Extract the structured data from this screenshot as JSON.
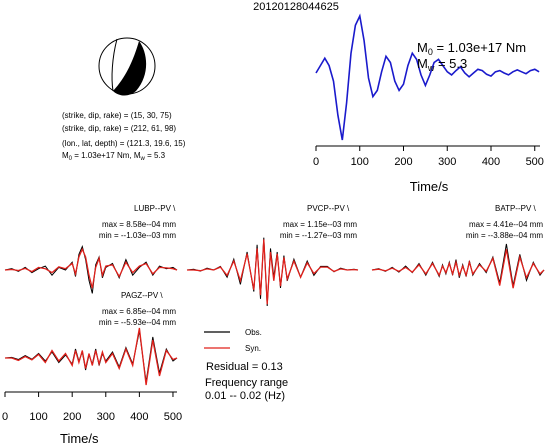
{
  "title": "20120128044625",
  "colors": {
    "obs": "#000000",
    "syn": "#e0201b",
    "stf": "#1a1acc",
    "beach_fill": "#000000"
  },
  "source": {
    "line1": "(strike, dip, rake) = (15, 30, 75)",
    "line2": "(strike, dip, rake) = (212, 61, 98)",
    "line3": "(lon., lat, depth) = (121.3, 19.6, 15)",
    "line4a": "M",
    "line4a_sub": "0",
    "line4b": " = 1.03e+17 Nm, M",
    "line4b_sub": "w",
    "line4c": " = 5.3"
  },
  "stf_labels": {
    "m0_prefix": "M",
    "m0_sub": "0",
    "m0_value": " = 1.03e+17 Nm",
    "mw_prefix": "M",
    "mw_sub": "w",
    "mw_value": " = 5.3"
  },
  "stations": [
    {
      "name": "LUBP--PV \\",
      "max": "max = 8.58e--04 mm",
      "min": "min = --1.03e--03 mm"
    },
    {
      "name": "PVCP--PV \\",
      "max": "max = 1.15e--03 mm",
      "min": "min = --1.27e--03 mm"
    },
    {
      "name": "BATP--PV \\",
      "max": "max = 4.41e--04 mm",
      "min": "min = --3.88e--04 mm"
    },
    {
      "name": "PAGZ--PV \\",
      "max": "max = 6.85e--04 mm",
      "min": "min = --5.93e--04 mm"
    }
  ],
  "legend": {
    "obs": "Obs.",
    "syn": "Syn."
  },
  "residual": "Residual = 0.13",
  "freq_label": "Frequency range",
  "freq_value": "0.01 -- 0.02 (Hz)",
  "chart_data": [
    {
      "type": "line",
      "title": "",
      "xlabel": "Time/s",
      "ylabel": "",
      "xlim": [
        0,
        512
      ],
      "xticks": [
        0,
        100,
        200,
        300,
        400,
        500
      ],
      "series": [
        {
          "x": [
            0,
            10,
            20,
            30,
            40,
            50,
            60,
            70,
            80,
            90,
            100,
            110,
            120,
            130,
            140,
            150,
            160,
            170,
            180,
            190,
            200,
            210,
            220,
            230,
            240,
            250,
            260,
            270,
            280,
            290,
            300,
            310,
            320,
            330,
            340,
            350,
            360,
            370,
            380,
            390,
            400,
            410,
            420,
            430,
            440,
            450,
            460,
            470,
            480,
            490,
            500,
            510
          ],
          "y": [
            0.08,
            0.2,
            0.32,
            0.2,
            -0.05,
            -0.6,
            -1.0,
            -0.4,
            0.4,
            0.85,
            1.0,
            0.6,
            0.0,
            -0.3,
            -0.2,
            0.1,
            0.35,
            0.25,
            -0.05,
            -0.2,
            -0.1,
            0.2,
            0.4,
            0.3,
            0.05,
            -0.12,
            0.05,
            0.25,
            0.3,
            0.2,
            0.1,
            0.05,
            0.12,
            0.18,
            0.08,
            0.02,
            0.08,
            0.14,
            0.12,
            0.06,
            0.03,
            0.1,
            0.12,
            0.08,
            0.05,
            0.1,
            0.13,
            0.1,
            0.07,
            0.12,
            0.14,
            0.1
          ]
        }
      ]
    },
    {
      "type": "line",
      "title": "",
      "xlabel": "Time/s",
      "ylabel": "",
      "xlim": [
        0,
        512
      ],
      "xticks": [
        0,
        100,
        200,
        300,
        400,
        500
      ],
      "series": [
        {
          "name": "Obs.",
          "station": 0,
          "x": [
            0,
            20,
            40,
            60,
            80,
            100,
            120,
            140,
            160,
            180,
            200,
            210,
            220,
            230,
            240,
            250,
            260,
            270,
            280,
            290,
            300,
            320,
            340,
            360,
            380,
            400,
            420,
            440,
            460,
            480,
            500,
            512
          ],
          "y": [
            0,
            0.05,
            -0.05,
            0.1,
            -0.1,
            0.05,
            0.15,
            -0.2,
            0.1,
            0.0,
            0.3,
            -0.25,
            0.6,
            0.9,
            0.4,
            -0.4,
            -0.9,
            0.2,
            0.5,
            -0.3,
            0.1,
            0.25,
            -0.3,
            0.4,
            -0.2,
            0.1,
            0.3,
            -0.2,
            0.15,
            0.05,
            0.1,
            0.0
          ]
        },
        {
          "name": "Syn.",
          "station": 0,
          "x": [
            0,
            20,
            40,
            60,
            80,
            100,
            120,
            140,
            160,
            180,
            200,
            210,
            220,
            230,
            240,
            250,
            260,
            270,
            280,
            290,
            300,
            320,
            340,
            360,
            380,
            400,
            420,
            440,
            460,
            480,
            500,
            512
          ],
          "y": [
            0,
            0.02,
            -0.02,
            0.06,
            -0.06,
            0.1,
            0.05,
            -0.1,
            0.12,
            0.05,
            0.25,
            -0.15,
            0.5,
            0.8,
            0.5,
            -0.2,
            -0.7,
            0.1,
            0.45,
            -0.2,
            0.15,
            0.2,
            -0.25,
            0.3,
            -0.1,
            0.15,
            0.25,
            -0.15,
            0.1,
            0.08,
            0.05,
            0.0
          ]
        },
        {
          "name": "Obs.",
          "station": 1,
          "x": [
            0,
            20,
            40,
            60,
            80,
            100,
            120,
            140,
            160,
            180,
            200,
            210,
            220,
            230,
            240,
            250,
            260,
            270,
            280,
            290,
            300,
            320,
            340,
            360,
            380,
            400,
            420,
            440,
            460,
            480,
            500,
            512
          ],
          "y": [
            0,
            0.02,
            -0.03,
            0.05,
            0.0,
            0.1,
            -0.2,
            0.3,
            -0.4,
            0.5,
            -0.6,
            0.7,
            -0.8,
            0.9,
            -1.0,
            0.6,
            -0.2,
            0.5,
            -0.5,
            0.4,
            -0.3,
            0.3,
            -0.2,
            0.25,
            -0.15,
            0.1,
            0.1,
            -0.05,
            0.05,
            0.0,
            0.02,
            0.0
          ]
        },
        {
          "name": "Syn.",
          "station": 1,
          "x": [
            0,
            20,
            40,
            60,
            80,
            100,
            120,
            140,
            160,
            180,
            200,
            210,
            220,
            230,
            240,
            250,
            260,
            270,
            280,
            290,
            300,
            320,
            340,
            360,
            380,
            400,
            420,
            440,
            460,
            480,
            500,
            512
          ],
          "y": [
            0,
            0.0,
            -0.02,
            0.03,
            0.0,
            0.08,
            -0.15,
            0.25,
            -0.3,
            0.45,
            -0.55,
            0.6,
            -0.7,
            0.85,
            -0.95,
            0.5,
            -0.3,
            0.45,
            -0.45,
            0.35,
            -0.25,
            0.25,
            -0.2,
            0.2,
            -0.1,
            0.08,
            0.08,
            -0.04,
            0.03,
            0.0,
            0.01,
            0.0
          ]
        },
        {
          "name": "Obs.",
          "station": 2,
          "x": [
            0,
            20,
            40,
            60,
            80,
            100,
            120,
            140,
            160,
            180,
            200,
            210,
            220,
            230,
            240,
            250,
            260,
            270,
            280,
            290,
            300,
            320,
            340,
            360,
            380,
            400,
            420,
            440,
            460,
            480,
            500,
            512
          ],
          "y": [
            0,
            0.05,
            -0.05,
            0.1,
            -0.08,
            0.15,
            -0.1,
            0.25,
            -0.2,
            0.3,
            -0.25,
            0.2,
            -0.15,
            0.3,
            -0.2,
            0.4,
            -0.3,
            0.2,
            -0.25,
            0.35,
            -0.2,
            0.25,
            -0.1,
            0.5,
            -0.5,
            1.0,
            -0.6,
            0.6,
            -0.4,
            0.3,
            -0.2,
            0.0
          ]
        },
        {
          "name": "Syn.",
          "station": 2,
          "x": [
            0,
            20,
            40,
            60,
            80,
            100,
            120,
            140,
            160,
            180,
            200,
            210,
            220,
            230,
            240,
            250,
            260,
            270,
            280,
            290,
            300,
            320,
            340,
            360,
            380,
            400,
            420,
            440,
            460,
            480,
            500,
            512
          ],
          "y": [
            0,
            0.03,
            -0.03,
            0.07,
            -0.05,
            0.1,
            -0.08,
            0.2,
            -0.15,
            0.25,
            -0.2,
            0.15,
            -0.1,
            0.25,
            -0.15,
            0.3,
            -0.2,
            0.15,
            -0.2,
            0.3,
            -0.15,
            0.2,
            -0.05,
            0.45,
            -0.6,
            0.8,
            -0.7,
            0.5,
            -0.3,
            0.25,
            -0.15,
            0.0
          ]
        },
        {
          "name": "Obs.",
          "station": 3,
          "x": [
            0,
            20,
            40,
            60,
            80,
            100,
            120,
            140,
            160,
            180,
            200,
            210,
            220,
            230,
            240,
            250,
            260,
            270,
            280,
            290,
            300,
            320,
            340,
            360,
            380,
            400,
            420,
            440,
            460,
            480,
            500,
            512
          ],
          "y": [
            0,
            0.02,
            -0.05,
            0.08,
            -0.04,
            0.15,
            -0.1,
            0.2,
            -0.15,
            0.1,
            -0.2,
            0.3,
            -0.1,
            0.2,
            -0.4,
            0.1,
            -0.2,
            0.3,
            -0.25,
            0.15,
            -0.1,
            0.2,
            -0.3,
            0.35,
            -0.2,
            0.9,
            -0.8,
            0.7,
            -0.5,
            0.3,
            -0.1,
            0.0
          ]
        },
        {
          "name": "Syn.",
          "station": 3,
          "x": [
            0,
            20,
            40,
            60,
            80,
            100,
            120,
            140,
            160,
            180,
            200,
            210,
            220,
            230,
            240,
            250,
            260,
            270,
            280,
            290,
            300,
            320,
            340,
            360,
            380,
            400,
            420,
            440,
            460,
            480,
            500,
            512
          ],
          "y": [
            0,
            0.0,
            -0.08,
            0.05,
            -0.06,
            0.12,
            -0.15,
            0.25,
            -0.1,
            0.15,
            -0.25,
            0.25,
            -0.15,
            0.25,
            -0.35,
            0.15,
            -0.25,
            0.25,
            -0.2,
            0.2,
            -0.15,
            0.15,
            -0.35,
            0.3,
            -0.25,
            1.0,
            -0.9,
            0.6,
            -0.6,
            0.25,
            -0.05,
            0.0
          ]
        }
      ]
    }
  ]
}
